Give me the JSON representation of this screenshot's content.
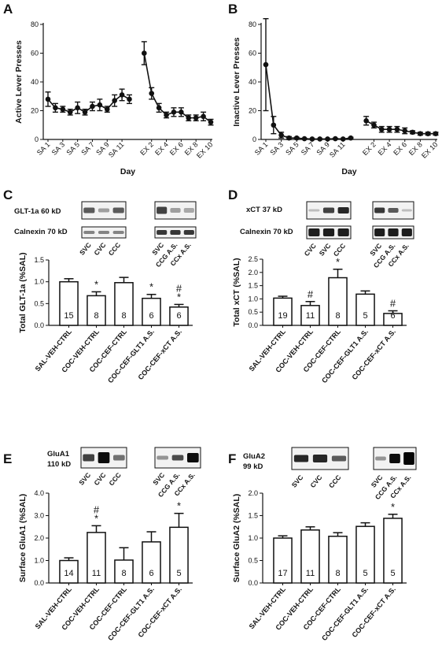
{
  "panels": {
    "A": {
      "letter": "A"
    },
    "B": {
      "letter": "B"
    },
    "C": {
      "letter": "C",
      "blots": [
        {
          "label": "GLT-1a 60 kD"
        },
        {
          "label": "Calnexin 70 kD"
        }
      ],
      "lanes": [
        [
          "SVC",
          "CVC",
          "CCC"
        ],
        [
          "SVC",
          "CCG A.S.",
          "CCx A.S."
        ]
      ]
    },
    "D": {
      "letter": "D",
      "blots": [
        {
          "label": "xCT 37 kD"
        },
        {
          "label": "Calnexin 70 kD"
        }
      ],
      "lanes": [
        [
          "CVC",
          "SVC",
          "CCC"
        ],
        [
          "SVC",
          "CCG A.S.",
          "CCx A.S."
        ]
      ]
    },
    "E": {
      "letter": "E",
      "blots": [
        {
          "label": "GluA1\n110 kD"
        }
      ],
      "lanes": [
        [
          "SVC",
          "CVC",
          "CCC"
        ],
        [
          "SVC",
          "CCG A.S.",
          "CCx A.S."
        ]
      ]
    },
    "F": {
      "letter": "F",
      "blots": [
        {
          "label": "GluA2\n99 kD"
        }
      ],
      "lanes": [
        [
          "SVC",
          "CVC",
          "CCC"
        ],
        [
          "SVC",
          "CCG A.S.",
          "CCx A.S."
        ]
      ]
    }
  },
  "chart_data": [
    {
      "panel": "A",
      "type": "line",
      "ylabel": "Active Lever Presses",
      "xlabel": "Day",
      "ylim": [
        0,
        80
      ],
      "yticks": [
        0,
        20,
        40,
        60,
        80
      ],
      "xticklabels": [
        "SA 1",
        "SA 3",
        "SA 5",
        "SA 7",
        "SA 9",
        "SA 11",
        "EX 2",
        "EX 4",
        "EX 6",
        "EX 8",
        "EX 10"
      ],
      "series": [
        {
          "segment": "SA",
          "x": [
            1,
            2,
            3,
            4,
            5,
            6,
            7,
            8,
            9,
            10,
            11,
            12
          ],
          "values": [
            28,
            22,
            21,
            19,
            22,
            19,
            23,
            24,
            21,
            27,
            31,
            28
          ],
          "errors": [
            5,
            3,
            2,
            2,
            4,
            2,
            3,
            4,
            2,
            4,
            4,
            3
          ]
        },
        {
          "segment": "EX",
          "x": [
            1,
            2,
            3,
            4,
            5,
            6,
            7,
            8,
            9,
            10
          ],
          "values": [
            60,
            32,
            22,
            17,
            19,
            19,
            15,
            15,
            16,
            12
          ],
          "errors": [
            8,
            4,
            3,
            2,
            3,
            3,
            2,
            2,
            3,
            2
          ]
        }
      ]
    },
    {
      "panel": "B",
      "type": "line",
      "ylabel": "Inactive Lever Presses",
      "xlabel": "Day",
      "ylim": [
        0,
        80
      ],
      "yticks": [
        0,
        20,
        40,
        60,
        80
      ],
      "xticklabels": [
        "SA 1",
        "SA 3",
        "SA 5",
        "SA 7",
        "SA 9",
        "SA 11",
        "EX 2",
        "EX 4",
        "EX 6",
        "EX 8",
        "EX 10"
      ],
      "series": [
        {
          "segment": "SA",
          "x": [
            1,
            2,
            3,
            4,
            5,
            6,
            7,
            8,
            9,
            10,
            11,
            12
          ],
          "values": [
            52,
            10,
            3,
            1,
            1,
            0.5,
            0.3,
            0.3,
            0.3,
            0.5,
            0.3,
            1
          ],
          "errors": [
            32,
            6,
            2,
            1,
            0.5,
            0.3,
            0.2,
            0.2,
            0.2,
            0.3,
            0.2,
            0.5
          ]
        },
        {
          "segment": "EX",
          "x": [
            1,
            2,
            3,
            4,
            5,
            6,
            7,
            8,
            9,
            10
          ],
          "values": [
            13,
            10,
            7,
            7,
            7,
            6,
            5,
            4,
            4,
            4
          ],
          "errors": [
            3,
            2,
            2,
            2,
            2,
            2,
            1,
            1,
            1,
            1
          ]
        }
      ]
    },
    {
      "panel": "C",
      "type": "bar",
      "ylabel": "Total GLT-1a (%SAL)",
      "ylim": [
        0,
        1.5
      ],
      "yticks": [
        "0.0",
        "0.5",
        "1.0",
        "1.5"
      ],
      "categories": [
        "SAL-VEH-CTRL",
        "COC-VEH-CTRL",
        "COC-CEF-CTRL",
        "COC-CEF-GLT1 A.S.",
        "COC-CEF-xCT A.S."
      ],
      "values": [
        1.0,
        0.68,
        0.98,
        0.62,
        0.42
      ],
      "errors": [
        0.07,
        0.09,
        0.12,
        0.09,
        0.06
      ],
      "n": [
        "15",
        "8",
        "8",
        "6",
        "6"
      ],
      "annotations": [
        "",
        "*",
        "",
        "*",
        "#\n*"
      ]
    },
    {
      "panel": "D",
      "type": "bar",
      "ylabel": "Total xCT (%SAL)",
      "ylim": [
        0,
        2.5
      ],
      "yticks": [
        "0.0",
        "0.5",
        "1.0",
        "1.5",
        "2.0",
        "2.5"
      ],
      "categories": [
        "SAL-VEH-CTRL",
        "COC-VEH-CTRL",
        "COC-CEF-CTRL",
        "COC-CEF-GLT1 A.S.",
        "COC-CEF-xCT A.S."
      ],
      "values": [
        1.03,
        0.75,
        1.8,
        1.18,
        0.45
      ],
      "errors": [
        0.07,
        0.15,
        0.32,
        0.12,
        0.1
      ],
      "n": [
        "19",
        "11",
        "8",
        "5",
        "6"
      ],
      "annotations": [
        "",
        "#",
        "*",
        "",
        "#"
      ]
    },
    {
      "panel": "E",
      "type": "bar",
      "ylabel": "Surface GluA1 (%SAL)",
      "ylim": [
        0,
        4.0
      ],
      "yticks": [
        "0.0",
        "1.0",
        "2.0",
        "3.0",
        "4.0"
      ],
      "categories": [
        "SAL-VEH-CTRL",
        "COC-VEH-CTRL",
        "COC-CEF-CTRL",
        "COC-CEF-GLT1 A.S.",
        "COC-CEF-xCT A.S."
      ],
      "values": [
        1.0,
        2.25,
        1.02,
        1.83,
        2.48
      ],
      "errors": [
        0.12,
        0.3,
        0.55,
        0.45,
        0.62
      ],
      "n": [
        "14",
        "11",
        "8",
        "6",
        "5"
      ],
      "annotations": [
        "",
        "#\n*",
        "",
        "",
        "*"
      ]
    },
    {
      "panel": "F",
      "type": "bar",
      "ylabel": "Surface GluA2 (%SAL)",
      "ylim": [
        0,
        2.0
      ],
      "yticks": [
        "0.0",
        "0.5",
        "1.0",
        "1.5",
        "2.0"
      ],
      "categories": [
        "SAL-VEH-CTRL",
        "COC-VEH-CTRL",
        "COC-CEF-CTRL",
        "COC-CEF-GLT1 A.S.",
        "COC-CEF-xCT A.S."
      ],
      "values": [
        1.0,
        1.18,
        1.04,
        1.26,
        1.44
      ],
      "errors": [
        0.05,
        0.07,
        0.08,
        0.08,
        0.09
      ],
      "n": [
        "17",
        "11",
        "8",
        "5",
        "5"
      ],
      "annotations": [
        "",
        "",
        "",
        "",
        "*"
      ]
    }
  ]
}
